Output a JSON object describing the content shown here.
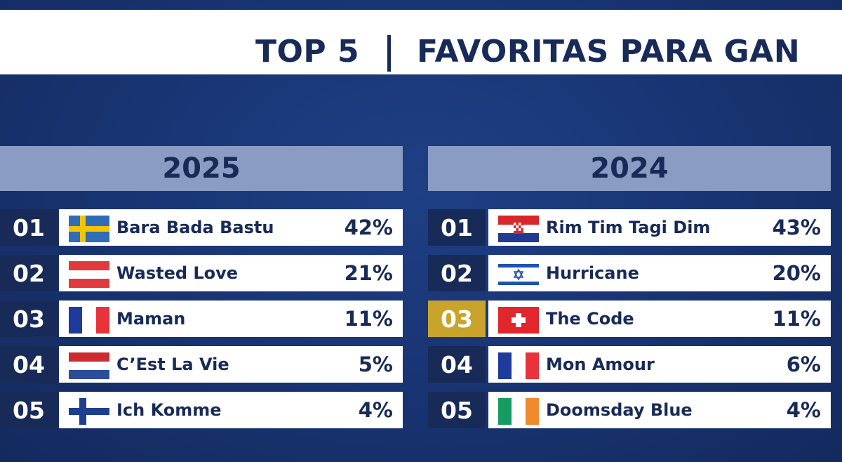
{
  "header": {
    "top_label": "TOP 5",
    "title": "FAVORITAS PARA GAN"
  },
  "left": {
    "year": "2025",
    "rows": [
      {
        "rank": "01",
        "flag": "sweden-flag",
        "song": "Bara Bada Bastu",
        "pct": "42%",
        "highlight": false
      },
      {
        "rank": "02",
        "flag": "austria-flag",
        "song": "Wasted Love",
        "pct": "21%",
        "highlight": false
      },
      {
        "rank": "03",
        "flag": "france-flag",
        "song": "Maman",
        "pct": "11%",
        "highlight": false
      },
      {
        "rank": "04",
        "flag": "netherlands-flag",
        "song": "C’Est La Vie",
        "pct": "5%",
        "highlight": false
      },
      {
        "rank": "05",
        "flag": "finland-flag",
        "song": "Ich Komme",
        "pct": "4%",
        "highlight": false
      }
    ]
  },
  "right": {
    "year": "2024",
    "rows": [
      {
        "rank": "01",
        "flag": "croatia-flag",
        "song": "Rim Tim Tagi Dim",
        "pct": "43%",
        "highlight": false
      },
      {
        "rank": "02",
        "flag": "israel-flag",
        "song": "Hurricane",
        "pct": "20%",
        "highlight": false
      },
      {
        "rank": "03",
        "flag": "switzerland-flag",
        "song": "The Code",
        "pct": "11%",
        "highlight": true
      },
      {
        "rank": "04",
        "flag": "france-flag",
        "song": "Mon Amour",
        "pct": "6%",
        "highlight": false
      },
      {
        "rank": "05",
        "flag": "ireland-flag",
        "song": "Doomsday Blue",
        "pct": "4%",
        "highlight": false
      }
    ]
  },
  "colors": {
    "navy": "#182a58",
    "gold": "#c9a32a",
    "header_blue": "#8a9cc4",
    "background": "#183371"
  }
}
